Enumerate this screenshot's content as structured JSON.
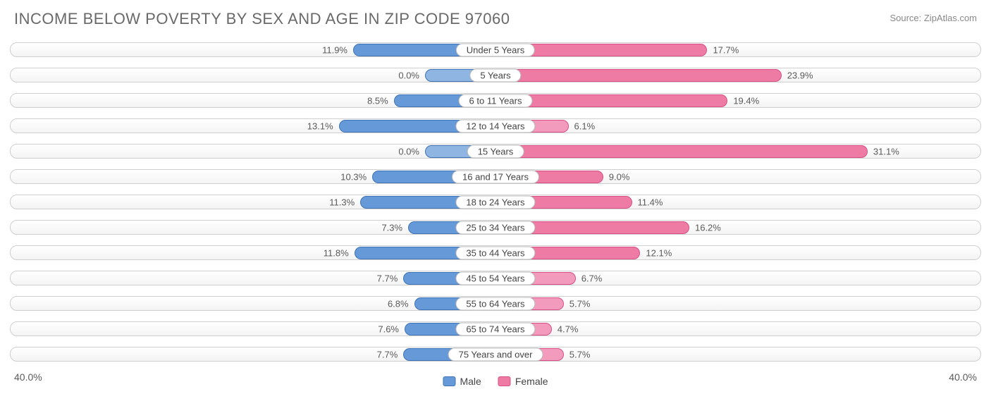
{
  "title": "INCOME BELOW POVERTY BY SEX AND AGE IN ZIP CODE 97060",
  "source": "Source: ZipAtlas.com",
  "chart": {
    "type": "diverging-bar",
    "max_value": 40.0,
    "axis_label_left": "40.0%",
    "axis_label_right": "40.0%",
    "male_color": "#6699d8",
    "male_border": "#3e73b8",
    "male_color_alt": "#8fb5e3",
    "female_color": "#ed7ba4",
    "female_border": "#d94f85",
    "female_color_alt": "#f29bbc",
    "row_bg_border": "#cfcfcf",
    "text_color": "#5a5a5a",
    "categories": [
      {
        "label": "Under 5 Years",
        "male": 11.9,
        "female": 17.7,
        "male_alt": false,
        "female_alt": false
      },
      {
        "label": "5 Years",
        "male": 0.0,
        "female": 23.9,
        "male_alt": true,
        "female_alt": false
      },
      {
        "label": "6 to 11 Years",
        "male": 8.5,
        "female": 19.4,
        "male_alt": false,
        "female_alt": false
      },
      {
        "label": "12 to 14 Years",
        "male": 13.1,
        "female": 6.1,
        "male_alt": false,
        "female_alt": true
      },
      {
        "label": "15 Years",
        "male": 0.0,
        "female": 31.1,
        "male_alt": true,
        "female_alt": false
      },
      {
        "label": "16 and 17 Years",
        "male": 10.3,
        "female": 9.0,
        "male_alt": false,
        "female_alt": false
      },
      {
        "label": "18 to 24 Years",
        "male": 11.3,
        "female": 11.4,
        "male_alt": false,
        "female_alt": false
      },
      {
        "label": "25 to 34 Years",
        "male": 7.3,
        "female": 16.2,
        "male_alt": false,
        "female_alt": false
      },
      {
        "label": "35 to 44 Years",
        "male": 11.8,
        "female": 12.1,
        "male_alt": false,
        "female_alt": false
      },
      {
        "label": "45 to 54 Years",
        "male": 7.7,
        "female": 6.7,
        "male_alt": false,
        "female_alt": true
      },
      {
        "label": "55 to 64 Years",
        "male": 6.8,
        "female": 5.7,
        "male_alt": false,
        "female_alt": true
      },
      {
        "label": "65 to 74 Years",
        "male": 7.6,
        "female": 4.7,
        "male_alt": false,
        "female_alt": true
      },
      {
        "label": "75 Years and over",
        "male": 7.7,
        "female": 5.7,
        "male_alt": false,
        "female_alt": true
      }
    ]
  },
  "legend": {
    "male": "Male",
    "female": "Female"
  }
}
